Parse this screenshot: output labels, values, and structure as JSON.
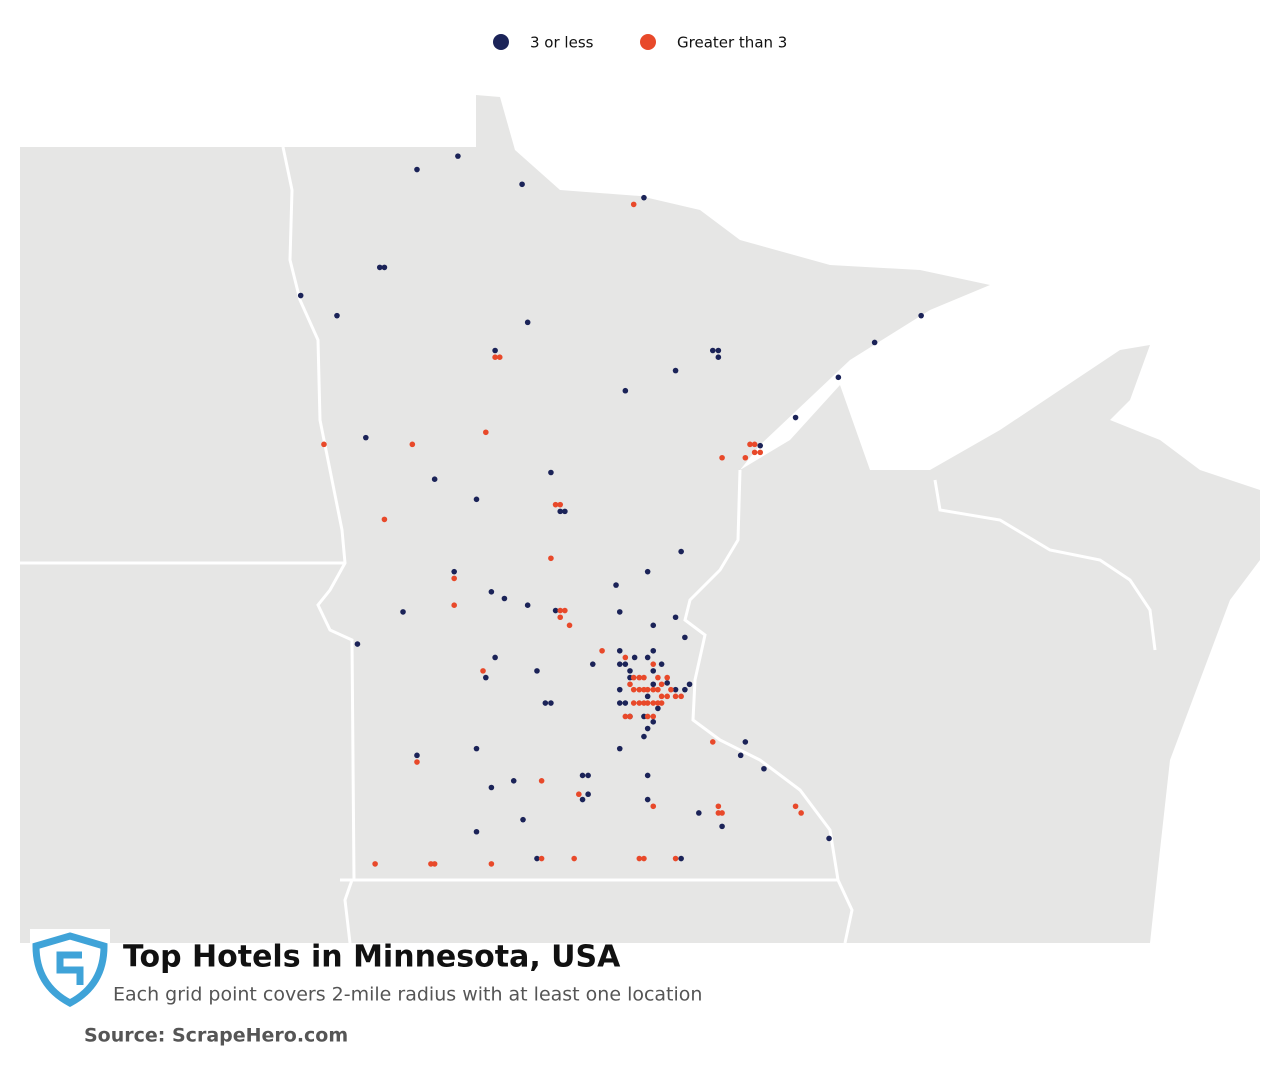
{
  "chart_data": {
    "type": "map",
    "title": "Top Hotels in Minnesota, USA",
    "subtitle": "Each grid point covers 2-mile radius with at least one location",
    "source": "Source: ScrapeHero.com",
    "series": [
      {
        "name": "3 or less",
        "color": "#1b2358",
        "lon": [
          -95.29,
          -95.73,
          -94.6,
          -93.29,
          -96.13,
          -96.08,
          -96.98,
          -96.59,
          -94.54,
          -94.89,
          -92.55,
          -92.49,
          -92.49,
          -92.95,
          -93.49,
          -91.2,
          -90.81,
          -90.31,
          -91.66,
          -96.28,
          -92.04,
          -95.54,
          -94.29,
          -95.09,
          -94.19,
          -94.14,
          -92.89,
          -93.25,
          -95.33,
          -93.59,
          -94.93,
          -94.79,
          -94.54,
          -94.24,
          -93.55,
          -95.88,
          -92.95,
          -93.19,
          -92.85,
          -96.37,
          -93.55,
          -93.19,
          -94.89,
          -93.84,
          -93.55,
          -93.49,
          -93.39,
          -93.25,
          -93.1,
          -94.99,
          -94.44,
          -93.44,
          -93.19,
          -93.44,
          -93.04,
          -92.8,
          -93.55,
          -92.95,
          -93.19,
          -93.25,
          -92.85,
          -93.55,
          -93.49,
          -93.29,
          -93.44,
          -93.14,
          -93.19,
          -93.25,
          -93.29,
          -94.35,
          -94.29,
          -92.2,
          -93.55,
          -92.25,
          -92.0,
          -95.73,
          -95.09,
          -93.95,
          -93.89,
          -93.25,
          -94.69,
          -94.93,
          -93.89,
          -93.95,
          -93.25,
          -92.7,
          -92.45,
          -94.59,
          -95.09,
          -91.3,
          -94.44,
          -92.89
        ],
        "lat": [
          48.9,
          48.8,
          48.69,
          48.59,
          48.07,
          48.07,
          47.86,
          47.71,
          47.66,
          47.45,
          47.45,
          47.45,
          47.4,
          47.3,
          47.15,
          47.25,
          47.51,
          47.71,
          46.95,
          46.8,
          46.74,
          46.49,
          46.54,
          46.34,
          46.25,
          46.25,
          45.95,
          45.8,
          45.8,
          45.7,
          45.65,
          45.6,
          45.55,
          45.51,
          45.5,
          45.5,
          45.46,
          45.4,
          45.31,
          45.26,
          45.21,
          45.21,
          45.16,
          45.11,
          45.11,
          45.11,
          45.16,
          45.16,
          45.11,
          45.01,
          45.06,
          45.06,
          45.06,
          45.01,
          44.97,
          44.96,
          44.92,
          44.92,
          44.96,
          44.87,
          44.92,
          44.82,
          44.82,
          44.72,
          44.72,
          44.78,
          44.68,
          44.63,
          44.57,
          44.82,
          44.82,
          44.53,
          44.48,
          44.43,
          44.33,
          44.43,
          44.48,
          44.28,
          44.28,
          44.28,
          44.24,
          44.19,
          44.14,
          44.1,
          44.1,
          44.0,
          43.9,
          43.95,
          43.86,
          43.81,
          43.66,
          43.66
        ]
      },
      {
        "name": "Greater than 3",
        "color": "#e8492a",
        "lon": [
          -93.4,
          -94.89,
          -94.84,
          -94.99,
          -96.73,
          -95.78,
          -92.45,
          -92.15,
          -92.1,
          -92.2,
          -92.1,
          -92.04,
          -96.08,
          -94.24,
          -94.19,
          -94.29,
          -95.33,
          -95.33,
          -94.19,
          -94.14,
          -94.19,
          -94.09,
          -93.74,
          -93.49,
          -93.19,
          -95.02,
          -93.4,
          -93.34,
          -93.29,
          -93.14,
          -93.04,
          -93.4,
          -93.34,
          -93.29,
          -93.25,
          -93.19,
          -93.14,
          -93.1,
          -93.0,
          -92.95,
          -92.89,
          -93.1,
          -93.04,
          -93.44,
          -93.4,
          -93.34,
          -93.29,
          -93.25,
          -93.19,
          -93.14,
          -93.1,
          -93.44,
          -93.49,
          -93.25,
          -93.19,
          -92.55,
          -95.73,
          -94.39,
          -93.99,
          -93.19,
          -92.49,
          -92.49,
          -92.45,
          -91.66,
          -91.6,
          -96.18,
          -95.58,
          -95.54,
          -94.93,
          -94.39,
          -94.04,
          -93.34,
          -93.29,
          -92.95
        ],
        "lat": [
          48.54,
          47.4,
          47.4,
          46.84,
          46.75,
          46.75,
          46.65,
          46.75,
          46.75,
          46.65,
          46.69,
          46.69,
          46.19,
          46.3,
          46.3,
          45.9,
          45.75,
          45.55,
          45.51,
          45.51,
          45.46,
          45.4,
          45.21,
          45.16,
          45.11,
          45.06,
          45.01,
          45.01,
          45.01,
          45.01,
          45.01,
          44.92,
          44.92,
          44.92,
          44.92,
          44.92,
          44.92,
          44.96,
          44.92,
          44.87,
          44.87,
          44.87,
          44.87,
          44.96,
          44.82,
          44.82,
          44.82,
          44.82,
          44.82,
          44.82,
          44.82,
          44.72,
          44.72,
          44.72,
          44.72,
          44.53,
          44.38,
          44.24,
          44.14,
          44.05,
          44.05,
          44.0,
          44.0,
          44.05,
          44.0,
          43.62,
          43.62,
          43.62,
          43.62,
          43.66,
          43.66,
          43.66,
          43.66,
          43.66
        ]
      }
    ]
  }
}
